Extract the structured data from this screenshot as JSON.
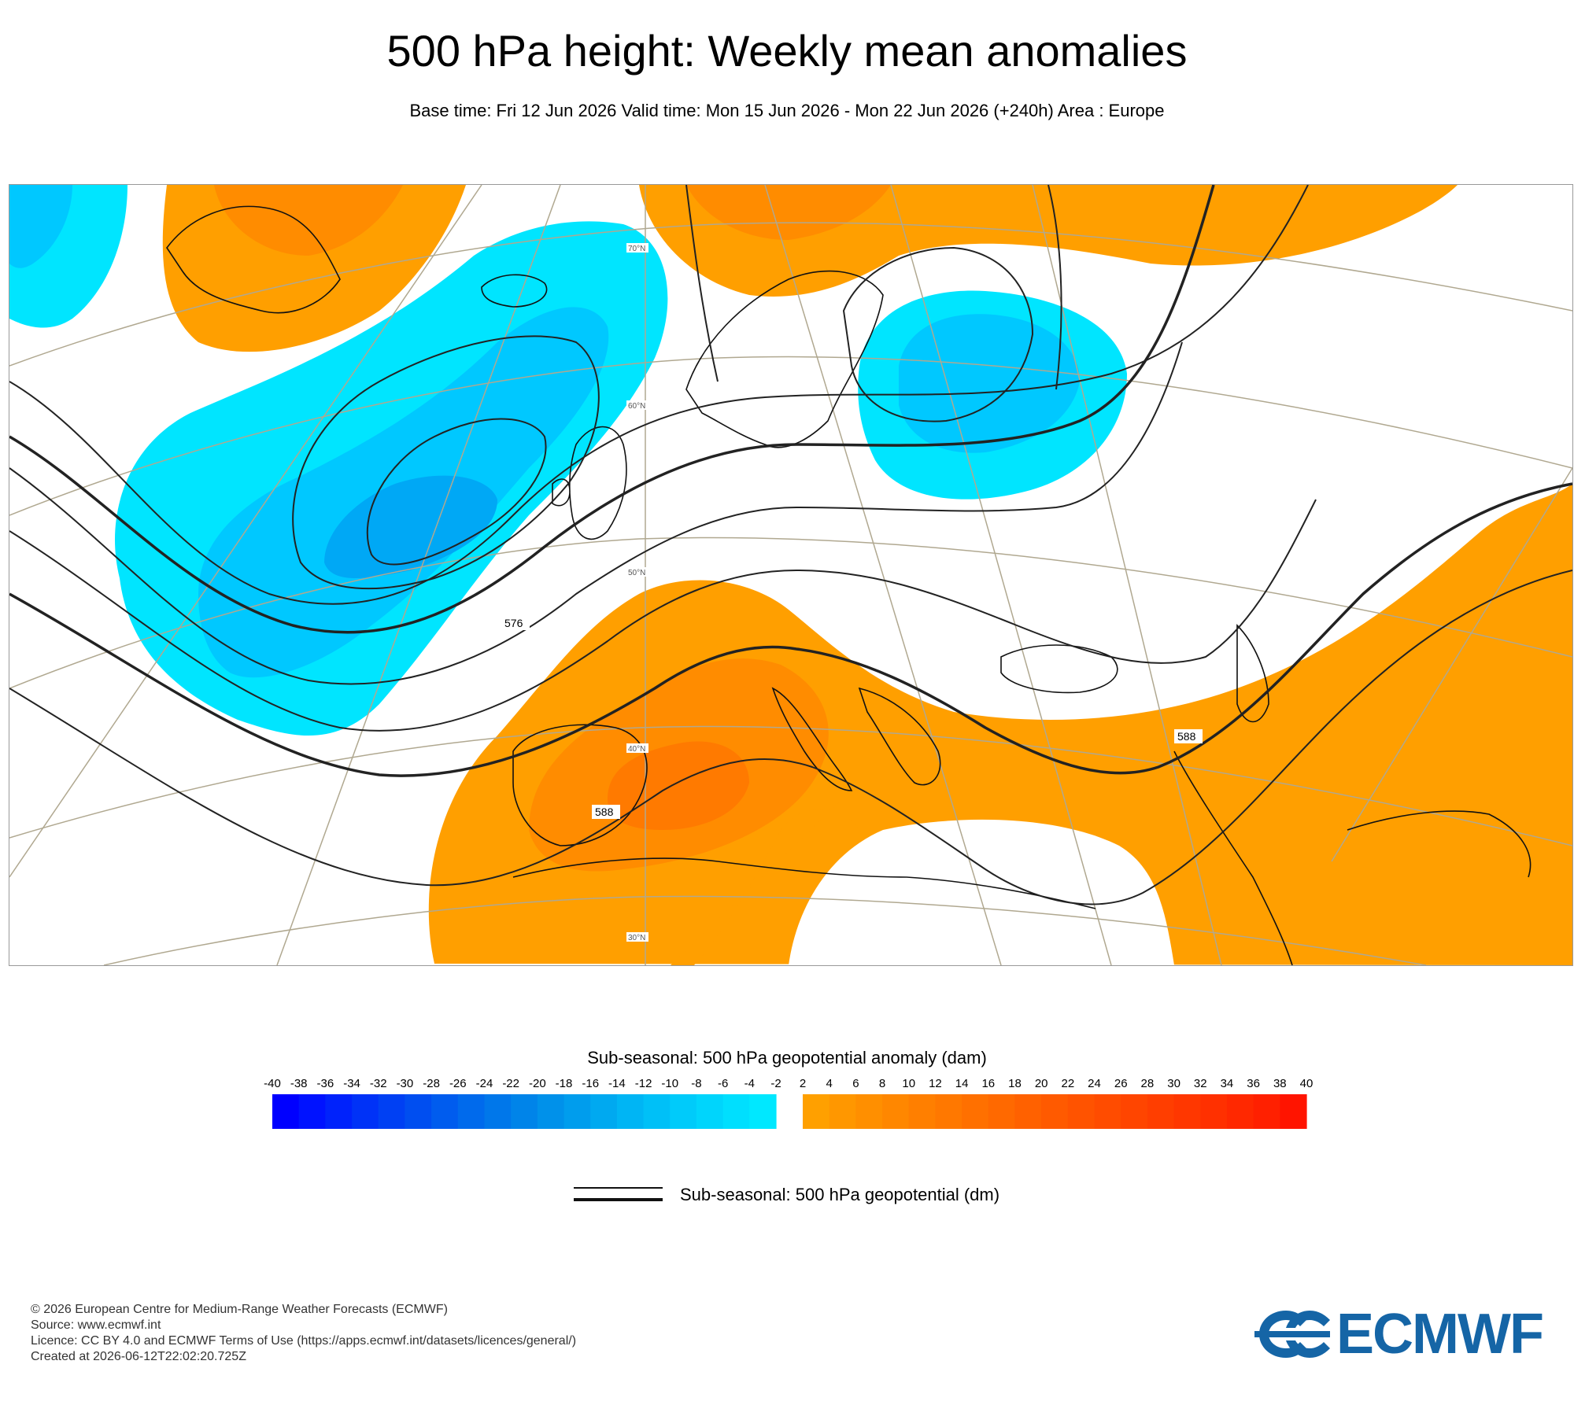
{
  "header": {
    "title": "500 hPa height: Weekly mean anomalies",
    "subtitle": "Base time: Fri 12 Jun 2026 Valid time: Mon 15 Jun 2026 - Mon 22 Jun 2026 (+240h) Area : Europe"
  },
  "map": {
    "area": "Europe",
    "lat_labels": [
      "70°N",
      "60°N",
      "50°N",
      "40°N",
      "30°N"
    ],
    "contour_labels": [
      "576",
      "588",
      "588"
    ],
    "colors": {
      "negative_light": "#00e5ff",
      "negative_mid": "#00c8ff",
      "negative_deep": "#00a8f5",
      "positive_light": "#ff9f00",
      "positive_mid": "#ff8c00",
      "positive_deep": "#ff7a00",
      "coastline": "#111111",
      "graticule": "#b0a890"
    }
  },
  "colorbar": {
    "title": "Sub-seasonal: 500 hPa geopotential anomaly (dam)",
    "ticks": [
      "-40",
      "-38",
      "-36",
      "-34",
      "-32",
      "-30",
      "-28",
      "-26",
      "-24",
      "-22",
      "-20",
      "-18",
      "-16",
      "-14",
      "-12",
      "-10",
      "-8",
      "-6",
      "-4",
      "-2",
      "2",
      "4",
      "6",
      "8",
      "10",
      "12",
      "14",
      "16",
      "18",
      "20",
      "22",
      "24",
      "26",
      "28",
      "30",
      "32",
      "34",
      "36",
      "38",
      "40"
    ],
    "negative_colors": [
      "#0000ff",
      "#0012ff",
      "#0022fb",
      "#0032f7",
      "#0040f3",
      "#004ef0",
      "#005cee",
      "#006aec",
      "#0077ea",
      "#0084e9",
      "#0091ea",
      "#009ded",
      "#00a9f0",
      "#00b5f4",
      "#00c0f7",
      "#00cbfa",
      "#00d5fc",
      "#00dffe",
      "#00e8ff"
    ],
    "positive_colors": [
      "#ffa000",
      "#ff9700",
      "#ff8f00",
      "#ff8700",
      "#ff7f00",
      "#ff7800",
      "#ff7000",
      "#ff6900",
      "#ff6100",
      "#ff5a00",
      "#ff5300",
      "#ff4c00",
      "#ff4500",
      "#ff3e00",
      "#ff3700",
      "#ff3000",
      "#ff2800",
      "#ff2000",
      "#ff1400"
    ]
  },
  "legend": {
    "contour_label": "Sub-seasonal: 500 hPa geopotential (dm)"
  },
  "footer": {
    "copyright": "© 2026 European Centre for Medium-Range Weather Forecasts (ECMWF)",
    "source": "Source: www.ecmwf.int",
    "licence": "Licence: CC BY 4.0 and ECMWF Terms of Use (https://apps.ecmwf.int/datasets/licences/general/)",
    "created": "Created at 2026-06-12T22:02:20.725Z"
  },
  "logo": {
    "text": "ECMWF"
  }
}
